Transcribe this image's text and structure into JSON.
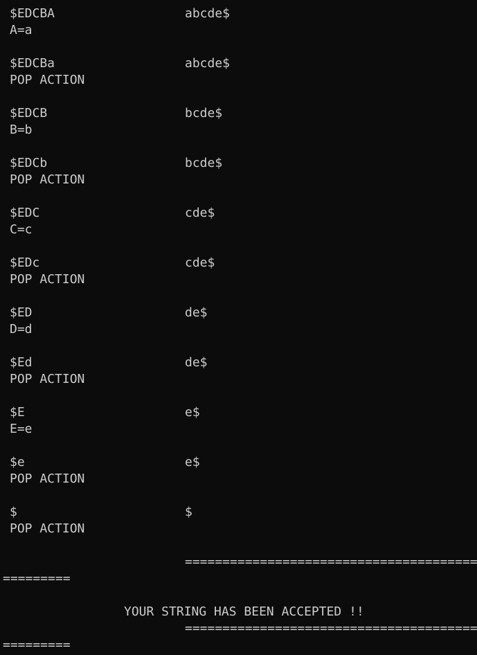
{
  "terminal": {
    "steps": [
      {
        "stack": "$EDCBA",
        "input": "abcde$",
        "action": "A=a"
      },
      {
        "stack": "$EDCBa",
        "input": "abcde$",
        "action": "POP ACTION"
      },
      {
        "stack": "$EDCB",
        "input": "bcde$",
        "action": "B=b"
      },
      {
        "stack": "$EDCb",
        "input": "bcde$",
        "action": "POP ACTION"
      },
      {
        "stack": "$EDC",
        "input": "cde$",
        "action": "C=c"
      },
      {
        "stack": "$EDc",
        "input": "cde$",
        "action": "POP ACTION"
      },
      {
        "stack": "$ED",
        "input": "de$",
        "action": "D=d"
      },
      {
        "stack": "$Ed",
        "input": "de$",
        "action": "POP ACTION"
      },
      {
        "stack": "$E",
        "input": "e$",
        "action": "E=e"
      },
      {
        "stack": "$e",
        "input": "e$",
        "action": "POP ACTION"
      },
      {
        "stack": "$",
        "input": "$",
        "action": "POP ACTION"
      }
    ],
    "separator_top_right": "=========================================",
    "separator_top_left": "=========",
    "result_message": "YOUR STRING HAS BEEN ACCEPTED !!",
    "separator_bottom_right": "=========================================",
    "separator_bottom_left": "========="
  },
  "colors": {
    "background": "#0c0c0c",
    "text": "#cccccc"
  }
}
